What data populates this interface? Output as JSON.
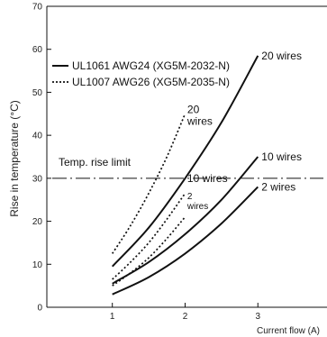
{
  "chart_data": {
    "type": "line",
    "xlabel": "Current flow (A)",
    "ylabel": "Rise in temperature (°C)",
    "xlim": [
      0.1,
      3.95
    ],
    "ylim": [
      0,
      70
    ],
    "xticks": [
      1,
      2,
      3
    ],
    "yticks": [
      0,
      10,
      20,
      30,
      40,
      50,
      60,
      70
    ],
    "grid": false,
    "legend_position": "top-left",
    "legend": [
      {
        "label": "UL1061 AWG24 (XG5M-2032-N)",
        "style": "solid"
      },
      {
        "label": "UL1007 AWG26 (XG5M-2035-N)",
        "style": "dotted"
      }
    ],
    "limit_line": {
      "label": "Temp. rise limit",
      "y": 30
    },
    "series": [
      {
        "name": "20 wires",
        "cable": "UL1061 AWG24 (XG5M-2032-N)",
        "style": "solid",
        "x": [
          1.0,
          1.5,
          2.0,
          2.5,
          3.0
        ],
        "y": [
          9.5,
          18.5,
          30.0,
          43.0,
          58.5
        ]
      },
      {
        "name": "10 wires",
        "cable": "UL1061 AWG24 (XG5M-2032-N)",
        "style": "solid",
        "x": [
          1.0,
          1.5,
          2.0,
          2.5,
          3.0
        ],
        "y": [
          5.5,
          10.5,
          17.0,
          25.0,
          35.0
        ]
      },
      {
        "name": "2 wires",
        "cable": "UL1061 AWG24 (XG5M-2032-N)",
        "style": "solid",
        "x": [
          1.0,
          1.5,
          2.0,
          2.5,
          3.0
        ],
        "y": [
          3.0,
          7.0,
          12.5,
          19.5,
          28.0
        ]
      },
      {
        "name": "20 wires",
        "cable": "UL1007 AWG26 (XG5M-2035-N)",
        "style": "dotted",
        "x": [
          1.0,
          1.25,
          1.5,
          1.75,
          2.0
        ],
        "y": [
          12.5,
          19.0,
          26.5,
          35.0,
          45.0
        ]
      },
      {
        "name": "10 wires",
        "cable": "UL1007 AWG26 (XG5M-2035-N)",
        "style": "dotted",
        "x": [
          1.0,
          1.25,
          1.5,
          1.75,
          2.0
        ],
        "y": [
          6.5,
          10.5,
          15.0,
          20.5,
          26.5
        ]
      },
      {
        "name": "2 wires",
        "cable": "UL1007 AWG26 (XG5M-2035-N)",
        "style": "dotted",
        "x": [
          1.0,
          1.25,
          1.5,
          1.75,
          2.0
        ],
        "y": [
          5.0,
          8.0,
          11.5,
          16.0,
          21.0
        ]
      }
    ],
    "series_labels": [
      {
        "text": "20 wires",
        "x": 3.05,
        "y": 58.5
      },
      {
        "text": "10 wires",
        "x": 3.05,
        "y": 35.0
      },
      {
        "text": "2 wires",
        "x": 3.05,
        "y": 28.0
      },
      {
        "text": "20\nwires",
        "x": 2.03,
        "y": 46.0
      },
      {
        "text": "10 wires",
        "x": 2.03,
        "y": 30.0
      },
      {
        "text": "2\nwires",
        "x": 2.03,
        "y": 26.0
      }
    ]
  }
}
